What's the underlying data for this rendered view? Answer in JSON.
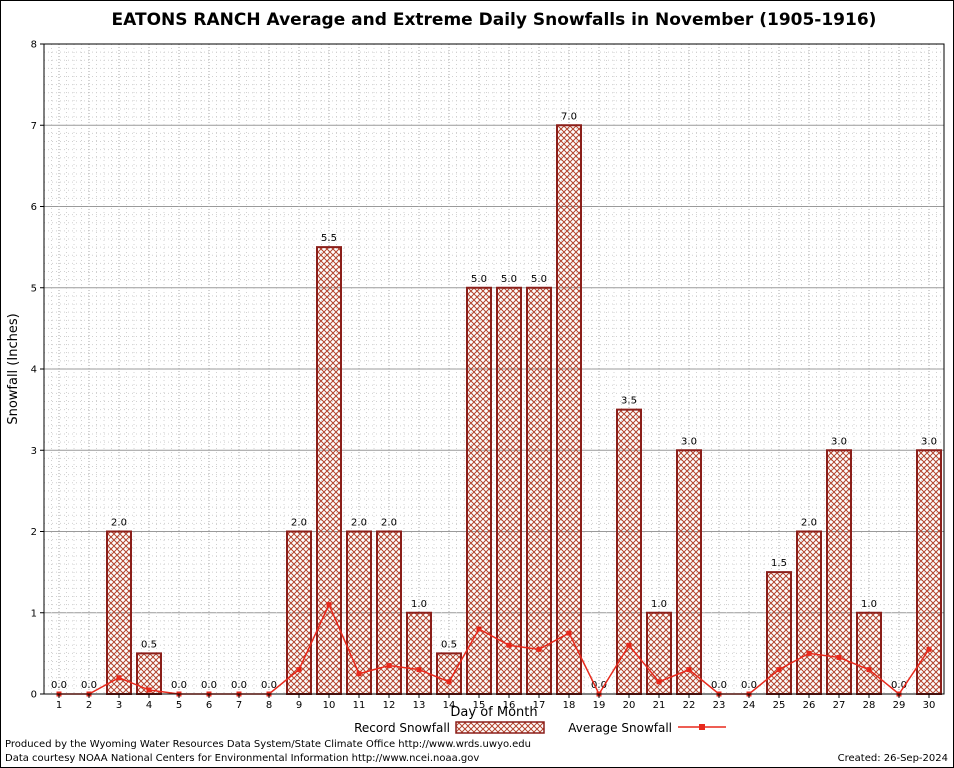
{
  "chart_data": {
    "type": "bar",
    "title": "EATONS RANCH Average and Extreme Daily Snowfalls in November (1905-1916)",
    "xlabel": "Day of Month",
    "ylabel": "Snowfall (Inches)",
    "ylim": [
      0,
      8
    ],
    "y_major_ticks": [
      0,
      1,
      2,
      3,
      4,
      5,
      6,
      7,
      8
    ],
    "grid": "on",
    "legend_position": "bottom",
    "categories": [
      "1",
      "2",
      "3",
      "4",
      "5",
      "6",
      "7",
      "8",
      "9",
      "10",
      "11",
      "12",
      "13",
      "14",
      "15",
      "16",
      "17",
      "18",
      "19",
      "20",
      "21",
      "22",
      "23",
      "24",
      "25",
      "26",
      "27",
      "28",
      "29",
      "30"
    ],
    "series": [
      {
        "name": "Record Snowfall",
        "type": "bar",
        "values": [
          0.0,
          0.0,
          2.0,
          0.5,
          0.0,
          0.0,
          0.0,
          0.0,
          2.0,
          5.5,
          2.0,
          2.0,
          1.0,
          0.5,
          5.0,
          5.0,
          5.0,
          7.0,
          0.0,
          3.5,
          1.0,
          3.0,
          0.0,
          0.0,
          1.5,
          2.0,
          3.0,
          1.0,
          0.0,
          3.0
        ]
      },
      {
        "name": "Average Snowfall",
        "type": "line",
        "values": [
          0.0,
          0.0,
          0.2,
          0.05,
          0.0,
          0.0,
          0.0,
          0.0,
          0.3,
          1.1,
          0.25,
          0.35,
          0.3,
          0.15,
          0.8,
          0.6,
          0.55,
          0.75,
          0.0,
          0.6,
          0.15,
          0.3,
          0.0,
          0.0,
          0.3,
          0.5,
          0.45,
          0.3,
          0.0,
          0.55
        ]
      }
    ],
    "colors": {
      "bar_outline": "#8b1f1a",
      "bar_hatch": "#b3452e",
      "line": "#e8291c",
      "grid_major": "#9a9a9a",
      "grid_minor": "#d0d0d0"
    }
  },
  "footer": {
    "line1": "Produced by the Wyoming Water Resources Data System/State Climate Office http://www.wrds.uwyo.edu",
    "line2": "Data courtesy NOAA National Centers for Environmental Information http://www.ncei.noaa.gov",
    "created": "Created: 26-Sep-2024"
  }
}
